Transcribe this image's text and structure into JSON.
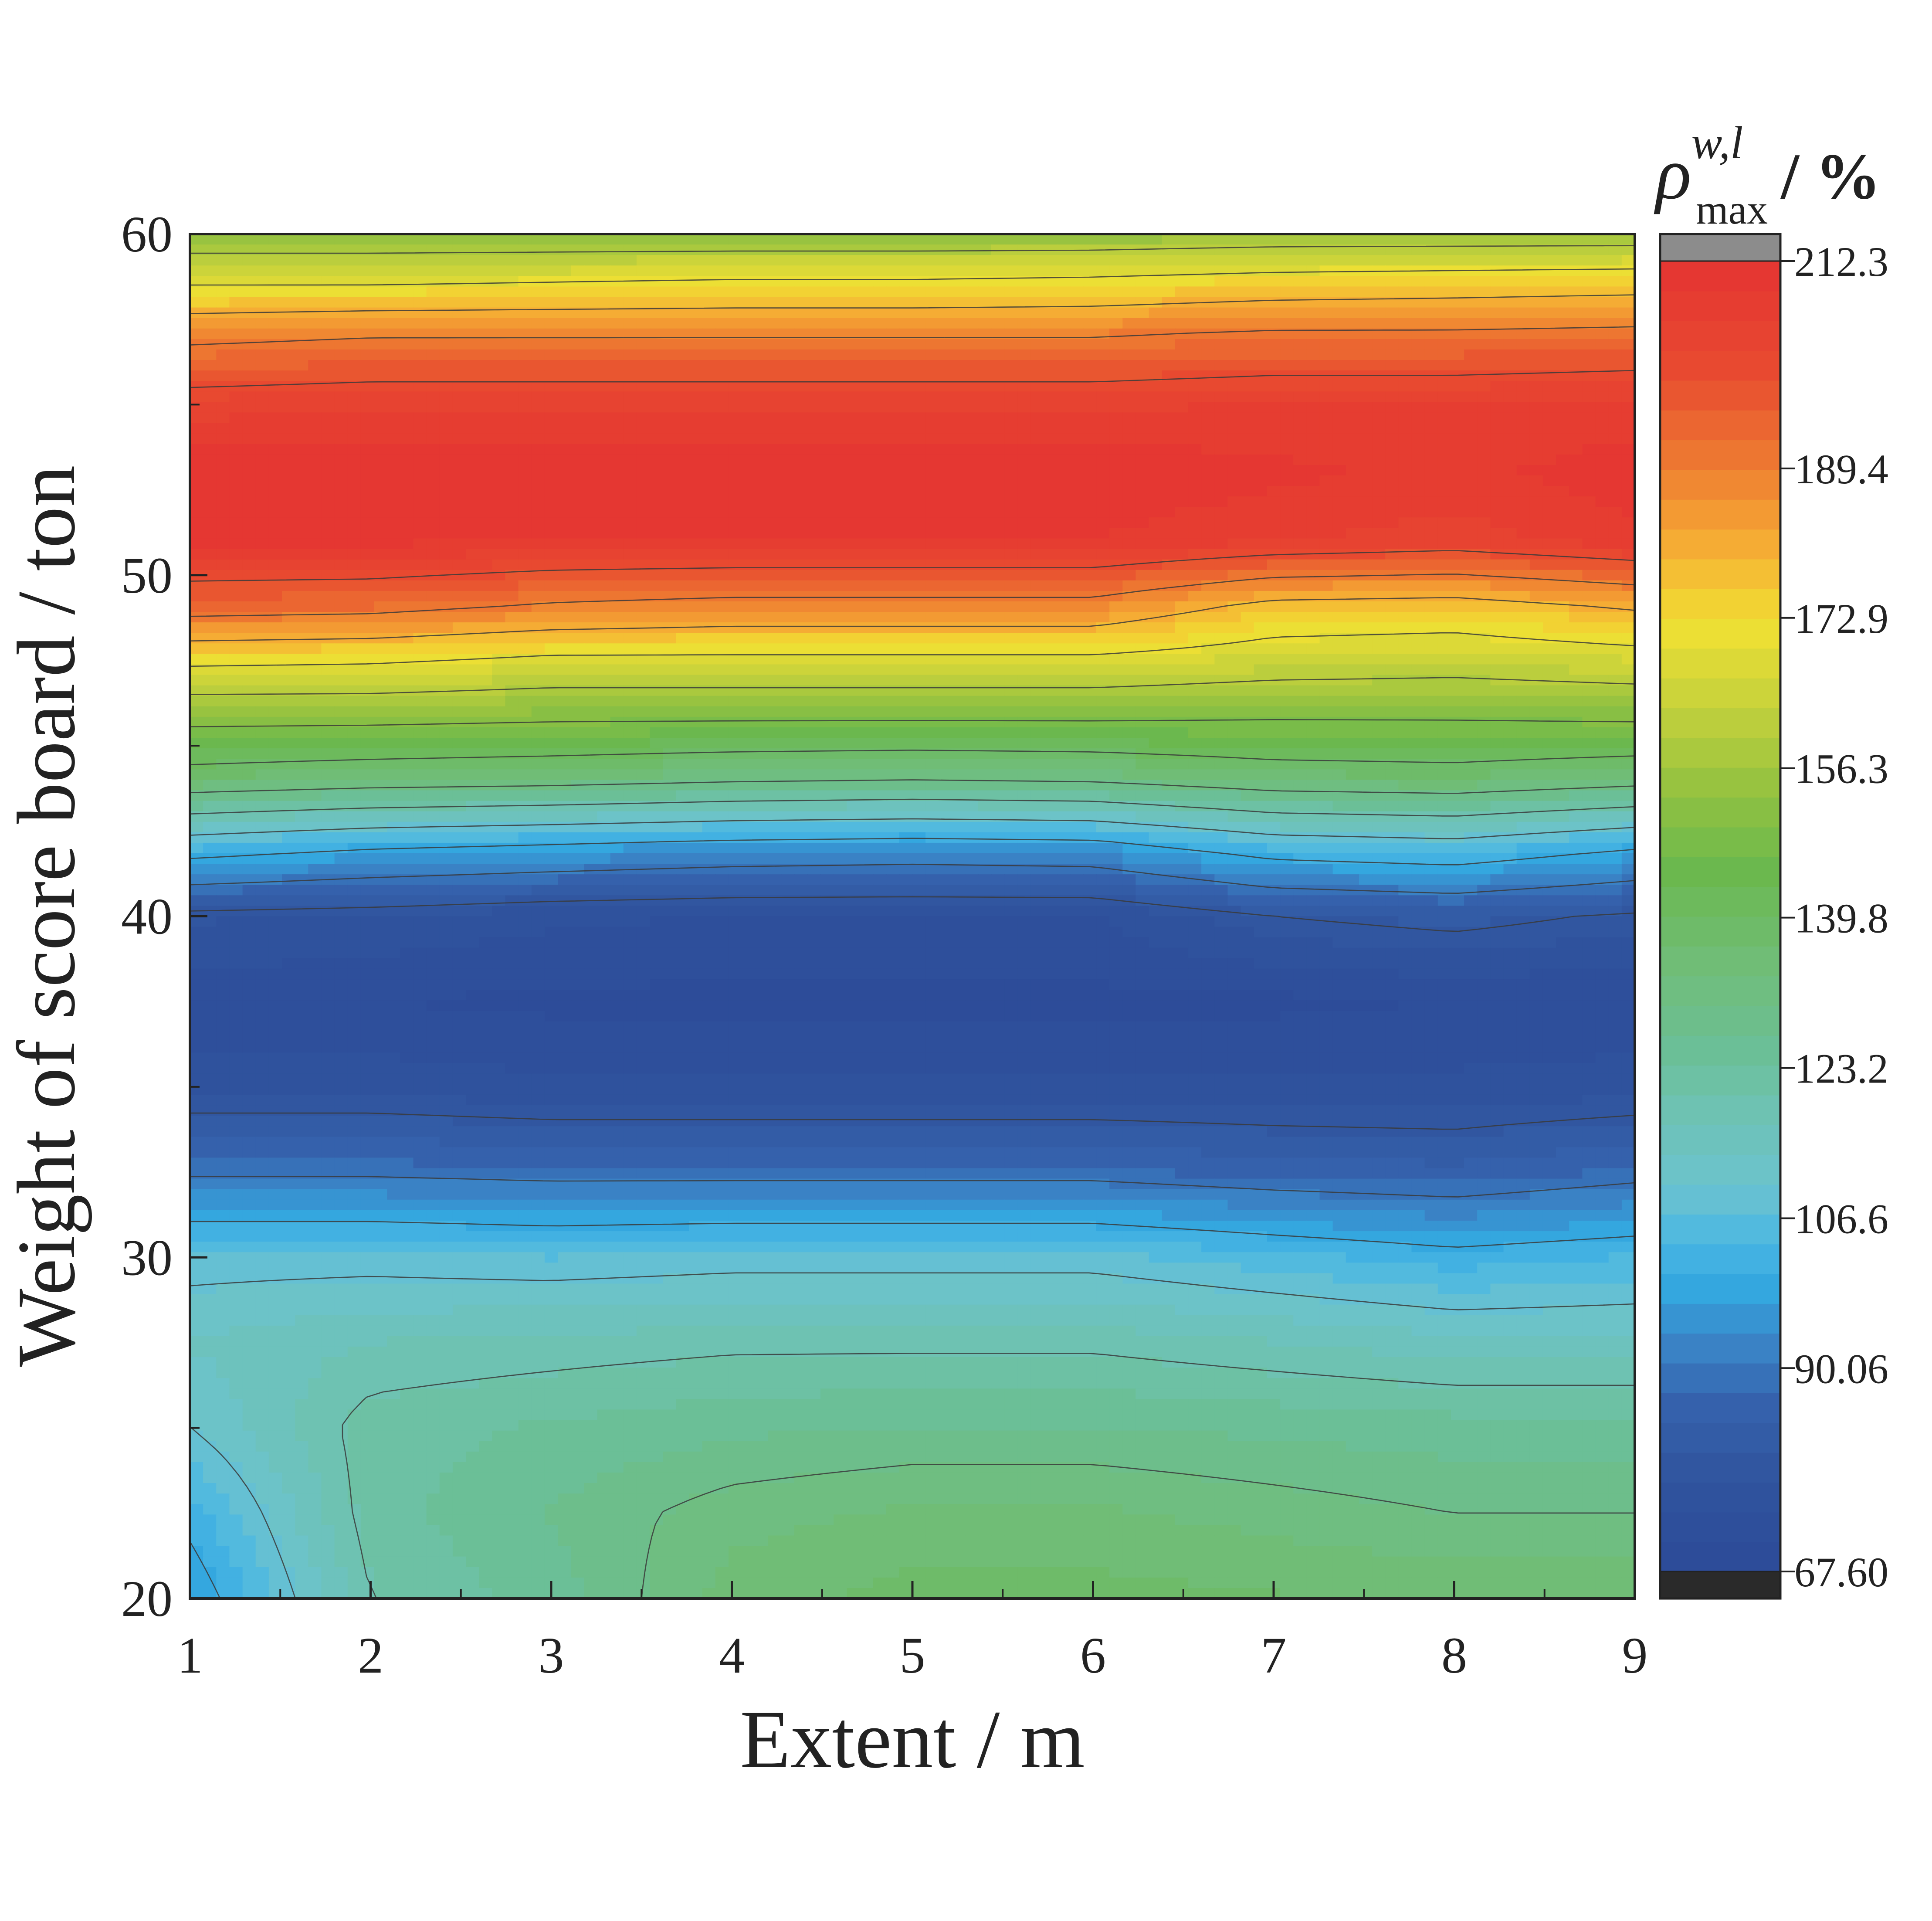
{
  "chart_data": {
    "type": "heatmap",
    "subtype": "filled-contour",
    "title": "",
    "xlabel": "Extent / m",
    "ylabel": "Weight of score board / ton",
    "xlim": [
      1,
      9
    ],
    "ylim": [
      20,
      60
    ],
    "x_ticks": [
      "1",
      "2",
      "3",
      "4",
      "5",
      "6",
      "7",
      "8",
      "9"
    ],
    "y_ticks": [
      "20",
      "30",
      "40",
      "50",
      "60"
    ],
    "colorbar": {
      "title_symbol": "ρ",
      "title_superscript": "w,l",
      "title_subscript": "max",
      "title_unit": "/ %",
      "range": [
        67.6,
        212.3
      ],
      "tick_labels": [
        "212.3",
        "189.4",
        "172.9",
        "156.3",
        "139.8",
        "123.2",
        "106.6",
        "90.06",
        "67.60"
      ],
      "tick_values": [
        212.3,
        189.4,
        172.9,
        156.3,
        139.8,
        123.2,
        106.6,
        90.06,
        67.6
      ],
      "over_color": "#8c8c8c",
      "under_color": "#2a2a2a"
    },
    "color_stops": [
      {
        "v": 67.6,
        "c": "#2c4a98"
      },
      {
        "v": 78,
        "c": "#30549e"
      },
      {
        "v": 86,
        "c": "#3562ad"
      },
      {
        "v": 92,
        "c": "#3a80c4"
      },
      {
        "v": 99,
        "c": "#34a8e0"
      },
      {
        "v": 104,
        "c": "#4ab7e3"
      },
      {
        "v": 110,
        "c": "#6cc3cf"
      },
      {
        "v": 118,
        "c": "#6ec2b4"
      },
      {
        "v": 126,
        "c": "#6bbf93"
      },
      {
        "v": 134,
        "c": "#70bd7a"
      },
      {
        "v": 145,
        "c": "#6bb84e"
      },
      {
        "v": 154,
        "c": "#94c240"
      },
      {
        "v": 163,
        "c": "#c4d13c"
      },
      {
        "v": 172,
        "c": "#f0e033"
      },
      {
        "v": 180,
        "c": "#f6b234"
      },
      {
        "v": 190,
        "c": "#ee7b31"
      },
      {
        "v": 200,
        "c": "#e84a30"
      },
      {
        "v": 212.3,
        "c": "#e43432"
      }
    ],
    "grid_x": [
      1,
      2,
      3,
      4,
      5,
      6,
      7,
      8,
      9
    ],
    "grid_y": [
      20,
      22.5,
      25,
      27.5,
      30,
      32.5,
      35,
      37.5,
      40,
      42,
      44,
      46,
      47.5,
      49,
      51,
      53,
      55,
      57,
      58.5,
      60
    ],
    "values": [
      [
        96,
        120,
        125,
        135,
        138,
        138,
        137,
        136,
        136
      ],
      [
        102,
        122,
        127,
        132,
        134,
        134,
        132,
        130,
        130
      ],
      [
        110,
        122,
        124,
        126,
        127,
        127,
        126,
        125,
        125
      ],
      [
        114,
        117,
        118,
        119,
        119,
        119,
        117,
        115,
        115
      ],
      [
        108,
        108,
        107,
        108,
        108,
        108,
        105,
        102,
        104
      ],
      [
        89,
        89,
        88,
        88,
        88,
        88,
        86,
        85,
        88
      ],
      [
        76,
        76,
        75,
        75,
        75,
        75,
        75,
        75,
        76
      ],
      [
        72,
        71,
        70,
        70,
        70,
        70,
        70,
        71,
        71
      ],
      [
        78,
        77,
        75,
        74,
        74,
        74,
        80,
        82,
        79
      ],
      [
        104,
        100,
        98,
        96,
        95,
        96,
        104,
        106,
        100
      ],
      [
        136,
        134,
        133,
        131,
        130,
        131,
        135,
        136,
        133
      ],
      [
        154,
        154,
        153,
        153,
        153,
        153,
        152,
        152,
        153
      ],
      [
        172,
        171,
        168,
        168,
        168,
        168,
        165,
        164,
        166
      ],
      [
        193,
        192,
        188,
        186,
        186,
        186,
        176,
        175,
        180
      ],
      [
        210,
        210,
        209,
        209,
        209,
        209,
        206,
        204,
        208
      ],
      [
        212,
        212,
        212,
        212,
        212,
        212,
        210,
        208,
        211
      ],
      [
        204,
        205,
        205,
        205,
        205,
        205,
        206,
        206,
        207
      ],
      [
        188,
        190,
        190,
        190,
        190,
        190,
        192,
        192,
        193
      ],
      [
        170,
        170,
        171,
        172,
        172,
        173,
        175,
        176,
        177
      ],
      [
        154,
        154,
        154,
        154,
        154,
        154,
        155,
        155,
        155
      ]
    ]
  }
}
